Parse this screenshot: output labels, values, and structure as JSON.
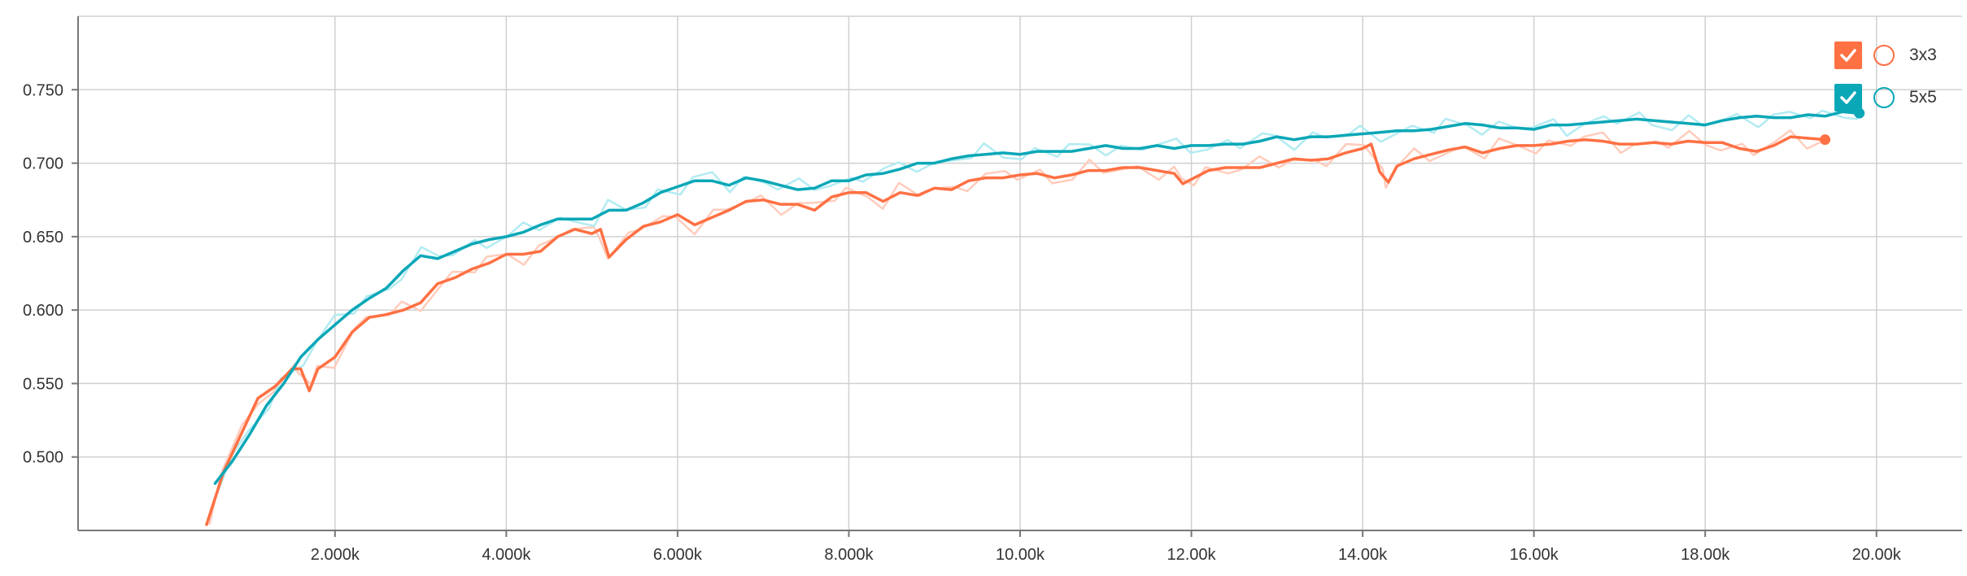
{
  "chart_data": {
    "type": "line",
    "title": "",
    "xlabel": "",
    "ylabel": "",
    "xlim": [
      -1000,
      21000
    ],
    "ylim": [
      0.45,
      0.8
    ],
    "xticks": [
      2000,
      4000,
      6000,
      8000,
      10000,
      12000,
      14000,
      16000,
      18000,
      20000
    ],
    "xtick_labels": [
      "2.000k",
      "4.000k",
      "6.000k",
      "8.000k",
      "10.00k",
      "12.00k",
      "14.00k",
      "16.00k",
      "18.00k",
      "20.00k"
    ],
    "yticks": [
      0.5,
      0.55,
      0.6,
      0.65,
      0.7,
      0.75
    ],
    "ytick_labels": [
      "0.500",
      "0.550",
      "0.600",
      "0.650",
      "0.700",
      "0.750"
    ],
    "grid": true,
    "legend_position": "top-right",
    "series": [
      {
        "name": "3x3",
        "color": "#ff7043",
        "raw_color": "#ffccbc",
        "x": [
          500,
          700,
          900,
          1100,
          1300,
          1500,
          1600,
          1700,
          1800,
          2000,
          2200,
          2400,
          2600,
          2800,
          3000,
          3200,
          3400,
          3600,
          3800,
          4000,
          4200,
          4400,
          4600,
          4800,
          5000,
          5100,
          5200,
          5400,
          5600,
          5800,
          6000,
          6200,
          6400,
          6600,
          6800,
          7000,
          7200,
          7400,
          7600,
          7800,
          8000,
          8200,
          8400,
          8600,
          8800,
          9000,
          9200,
          9400,
          9600,
          9800,
          10000,
          10200,
          10400,
          10600,
          10800,
          11000,
          11200,
          11400,
          11600,
          11800,
          11900,
          12000,
          12200,
          12400,
          12600,
          12800,
          13000,
          13200,
          13400,
          13600,
          13800,
          14000,
          14100,
          14200,
          14300,
          14400,
          14600,
          14800,
          15000,
          15200,
          15400,
          15600,
          15800,
          16000,
          16200,
          16400,
          16600,
          16800,
          17000,
          17200,
          17400,
          17600,
          17800,
          18000,
          18200,
          18400,
          18600,
          18800,
          19000,
          19200,
          19400
        ],
        "values": [
          0.454,
          0.49,
          0.515,
          0.54,
          0.548,
          0.56,
          0.56,
          0.545,
          0.56,
          0.568,
          0.585,
          0.595,
          0.597,
          0.6,
          0.605,
          0.618,
          0.622,
          0.628,
          0.632,
          0.638,
          0.638,
          0.64,
          0.65,
          0.655,
          0.652,
          0.655,
          0.636,
          0.648,
          0.657,
          0.66,
          0.665,
          0.658,
          0.663,
          0.668,
          0.674,
          0.675,
          0.672,
          0.672,
          0.668,
          0.677,
          0.68,
          0.68,
          0.674,
          0.68,
          0.678,
          0.683,
          0.682,
          0.688,
          0.69,
          0.69,
          0.692,
          0.693,
          0.69,
          0.692,
          0.695,
          0.695,
          0.697,
          0.697,
          0.695,
          0.693,
          0.686,
          0.689,
          0.695,
          0.697,
          0.697,
          0.697,
          0.7,
          0.703,
          0.702,
          0.703,
          0.707,
          0.71,
          0.713,
          0.694,
          0.687,
          0.698,
          0.703,
          0.706,
          0.709,
          0.711,
          0.707,
          0.71,
          0.712,
          0.712,
          0.713,
          0.715,
          0.716,
          0.715,
          0.713,
          0.713,
          0.714,
          0.713,
          0.715,
          0.714,
          0.714,
          0.71,
          0.708,
          0.712,
          0.718,
          0.717,
          0.716
        ]
      },
      {
        "name": "5x5",
        "color": "#0aa7b7",
        "raw_color": "#b2ebf2",
        "x": [
          600,
          800,
          1000,
          1200,
          1400,
          1600,
          1800,
          2000,
          2200,
          2400,
          2600,
          2800,
          3000,
          3200,
          3400,
          3600,
          3800,
          4000,
          4200,
          4400,
          4600,
          4800,
          5000,
          5200,
          5400,
          5600,
          5800,
          6000,
          6200,
          6400,
          6600,
          6800,
          7000,
          7200,
          7400,
          7600,
          7800,
          8000,
          8200,
          8400,
          8600,
          8800,
          9000,
          9200,
          9400,
          9600,
          9800,
          10000,
          10200,
          10400,
          10600,
          10800,
          11000,
          11200,
          11400,
          11600,
          11800,
          12000,
          12200,
          12400,
          12600,
          12800,
          13000,
          13200,
          13400,
          13600,
          13800,
          14000,
          14200,
          14400,
          14600,
          14800,
          15000,
          15200,
          15400,
          15600,
          15800,
          16000,
          16200,
          16400,
          16600,
          16800,
          17000,
          17200,
          17400,
          17600,
          17800,
          18000,
          18200,
          18400,
          18600,
          18800,
          19000,
          19200,
          19400,
          19600,
          19800
        ],
        "values": [
          0.482,
          0.497,
          0.515,
          0.535,
          0.55,
          0.568,
          0.58,
          0.59,
          0.6,
          0.608,
          0.615,
          0.627,
          0.637,
          0.635,
          0.64,
          0.645,
          0.648,
          0.65,
          0.653,
          0.658,
          0.662,
          0.662,
          0.662,
          0.668,
          0.668,
          0.673,
          0.68,
          0.684,
          0.688,
          0.688,
          0.685,
          0.69,
          0.688,
          0.685,
          0.682,
          0.683,
          0.688,
          0.688,
          0.692,
          0.693,
          0.696,
          0.7,
          0.7,
          0.703,
          0.705,
          0.706,
          0.707,
          0.706,
          0.708,
          0.708,
          0.708,
          0.71,
          0.712,
          0.71,
          0.71,
          0.712,
          0.71,
          0.712,
          0.712,
          0.713,
          0.713,
          0.715,
          0.718,
          0.716,
          0.718,
          0.718,
          0.719,
          0.72,
          0.721,
          0.722,
          0.722,
          0.723,
          0.725,
          0.727,
          0.726,
          0.724,
          0.724,
          0.723,
          0.726,
          0.726,
          0.727,
          0.728,
          0.729,
          0.73,
          0.729,
          0.728,
          0.727,
          0.726,
          0.729,
          0.731,
          0.732,
          0.731,
          0.731,
          0.733,
          0.732,
          0.735,
          0.734
        ]
      }
    ]
  }
}
